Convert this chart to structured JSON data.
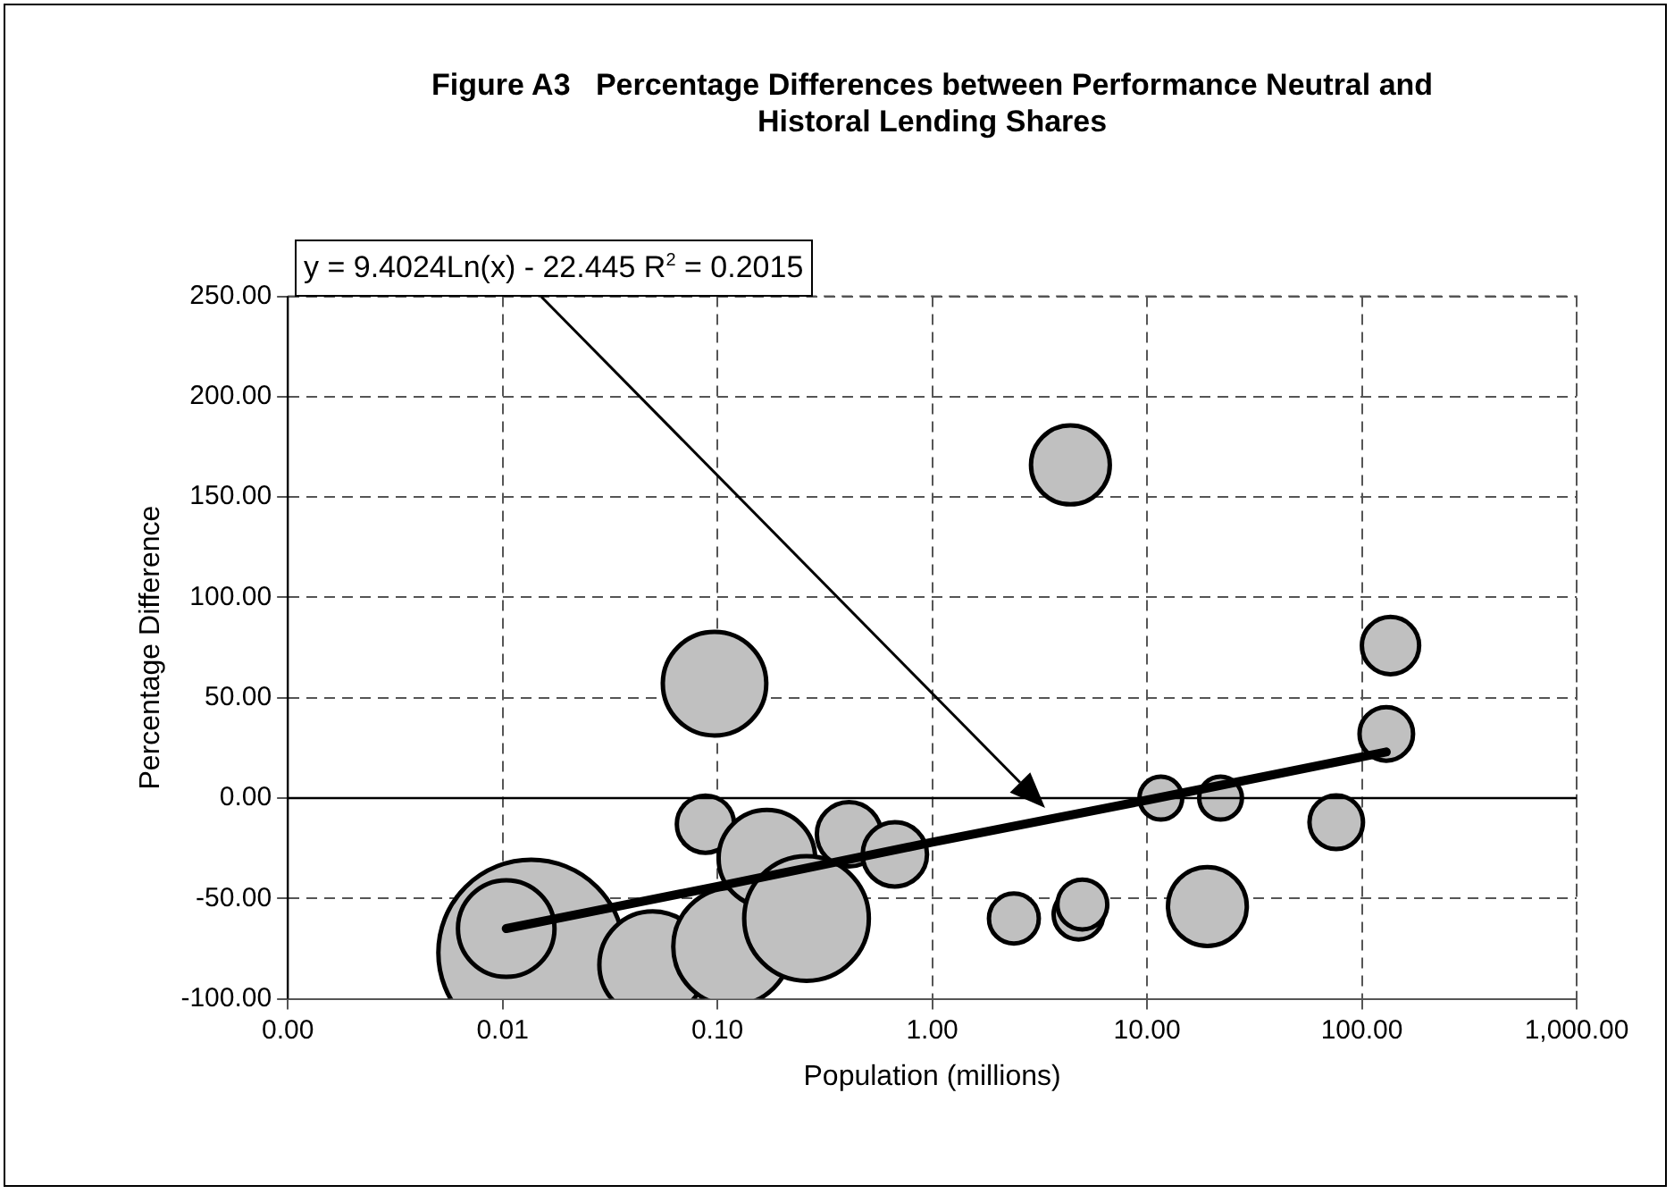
{
  "chart_data": {
    "type": "bubble",
    "title": "Figure A3   Percentage Differences between Performance Neutral and Historal Lending Shares",
    "xlabel": "Population (millions)",
    "ylabel": "Percentage Difference",
    "log": "x",
    "grid": true,
    "legend": false,
    "xlim": [
      0.001,
      1000
    ],
    "xticks": [
      {
        "value": 0.001,
        "label": "0.00"
      },
      {
        "value": 0.01,
        "label": "0.01"
      },
      {
        "value": 0.1,
        "label": "0.10"
      },
      {
        "value": 1,
        "label": "1.00"
      },
      {
        "value": 10,
        "label": "10.00"
      },
      {
        "value": 100,
        "label": "100.00"
      },
      {
        "value": 1000,
        "label": "1,000.00"
      }
    ],
    "ylim": [
      -100,
      250
    ],
    "yticks": [
      {
        "value": -100,
        "label": "-100.00"
      },
      {
        "value": -50,
        "label": "-50.00"
      },
      {
        "value": 0,
        "label": "0.00"
      },
      {
        "value": 50,
        "label": "50.00"
      },
      {
        "value": 100,
        "label": "100.00"
      },
      {
        "value": 150,
        "label": "150.00"
      },
      {
        "value": 200,
        "label": "200.00"
      },
      {
        "value": 250,
        "label": "250.00"
      }
    ],
    "ref_lines": [
      {
        "axis": "y",
        "value": 0,
        "color": "#000000"
      }
    ],
    "annotations": [
      "y = 9.4024Ln(x) - 22.445   R$^{2}$ = 0.2015"
    ],
    "series": [
      {
        "type": "bubble",
        "color": "#c0c0c0",
        "x": [
          0.0136,
          0.0104,
          0.05,
          0.117,
          0.097,
          0.088,
          0.17,
          0.26,
          0.41,
          0.67,
          2.4,
          4.8,
          5.0,
          4.4,
          11.6,
          22,
          19.1,
          76,
          130,
          136
        ],
        "values": [
          -77,
          -65,
          -83,
          -74,
          57,
          -13,
          -30,
          -60,
          -18,
          -28,
          -60,
          -58,
          -53,
          166,
          0,
          0,
          -54,
          -12,
          32,
          76
        ],
        "sizes": [
          1,
          0.27,
          0.33,
          0.4,
          0.31,
          0.095,
          0.27,
          0.45,
          0.12,
          0.12,
          0.072,
          0.072,
          0.072,
          0.18,
          0.053,
          0.053,
          0.18,
          0.083,
          0.083,
          0.095
        ]
      },
      {
        "type": "line",
        "color": "#000000",
        "x": [
          0.0104,
          0.1,
          1,
          10,
          130
        ],
        "values": [
          -65,
          -44,
          -22,
          -1,
          23
        ]
      }
    ]
  }
}
